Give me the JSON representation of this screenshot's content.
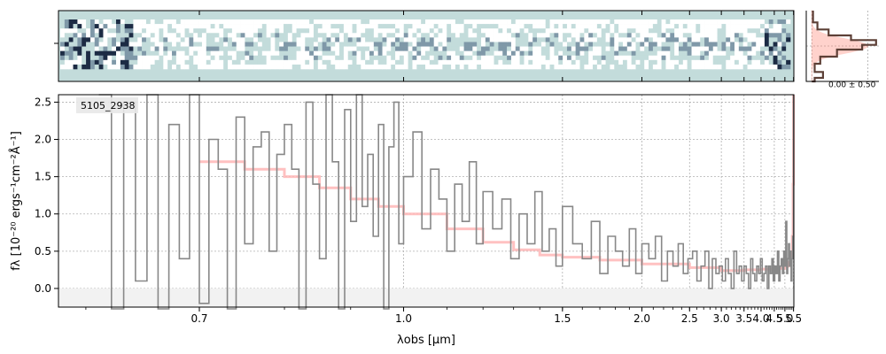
{
  "chart_data": [
    {
      "panel": "2d-spectrum",
      "type": "heatmap",
      "colormap": [
        "#1c2b44",
        "#7f98a8",
        "#c3dcdb",
        "#ffffff"
      ],
      "background": "#c3dcdb",
      "rows": 11,
      "columns": 170
    },
    {
      "panel": "profile",
      "type": "line",
      "annotation": "0.00 ± 0.50",
      "xlim": [
        -0.1,
        1.2
      ],
      "ylim": [
        -3.0,
        3.0
      ],
      "colors": {
        "model": "#ff7f6e",
        "profile": "#5d4037"
      }
    },
    {
      "panel": "1d-spectrum",
      "type": "line",
      "title": "",
      "label": "5105_2938",
      "xlabel": "λobs [μm]",
      "ylabel": "fλ [10⁻²⁰ ergs⁻¹cm⁻²Å⁻¹]",
      "xscale": "reciprocal",
      "xlim": [
        0.58,
        5.52
      ],
      "ylim": [
        -0.25,
        2.6
      ],
      "xticks": [
        0.7,
        1.0,
        1.5,
        2.0,
        2.5,
        3.0,
        3.5,
        4.0,
        4.5,
        5.0,
        5.5
      ],
      "xtick_labels": [
        "0.7",
        "1.0",
        "1.5",
        "2.0",
        "2.5",
        "3.0",
        "3.5",
        "4.0",
        "4.5",
        "5.0",
        "5.5"
      ],
      "yticks": [
        0.0,
        0.5,
        1.0,
        1.5,
        2.0,
        2.5
      ],
      "ytick_labels": [
        "0.0",
        "0.5",
        "1.0",
        "1.5",
        "2.0",
        "2.5"
      ],
      "grid": true,
      "series": [
        {
          "role": "model",
          "color": "#ffb6b6",
          "x": [
            0.7,
            0.75,
            0.8,
            0.85,
            0.9,
            0.95,
            1.0,
            1.1,
            1.2,
            1.3,
            1.4,
            1.5,
            1.7,
            2.0,
            2.5,
            3.0,
            3.5,
            4.0,
            4.5,
            5.0,
            5.2,
            5.35,
            5.42,
            5.47,
            5.5
          ],
          "y": [
            1.7,
            1.6,
            1.5,
            1.35,
            1.2,
            1.1,
            1.0,
            0.8,
            0.62,
            0.52,
            0.45,
            0.42,
            0.38,
            0.33,
            0.28,
            0.24,
            0.25,
            0.26,
            0.27,
            0.3,
            0.35,
            0.45,
            0.7,
            1.4,
            2.6
          ]
        },
        {
          "role": "data",
          "color": "#888888",
          "x": [
            0.61,
            0.62,
            0.63,
            0.64,
            0.65,
            0.66,
            0.67,
            0.68,
            0.69,
            0.7,
            0.71,
            0.72,
            0.73,
            0.74,
            0.75,
            0.76,
            0.77,
            0.78,
            0.79,
            0.8,
            0.81,
            0.82,
            0.83,
            0.84,
            0.85,
            0.86,
            0.87,
            0.88,
            0.89,
            0.9,
            0.91,
            0.92,
            0.93,
            0.94,
            0.95,
            0.96,
            0.97,
            0.98,
            0.99,
            1.0,
            1.02,
            1.04,
            1.06,
            1.08,
            1.1,
            1.12,
            1.14,
            1.16,
            1.18,
            1.2,
            1.23,
            1.26,
            1.29,
            1.32,
            1.35,
            1.38,
            1.41,
            1.44,
            1.47,
            1.5,
            1.55,
            1.6,
            1.65,
            1.7,
            1.75,
            1.8,
            1.85,
            1.9,
            1.95,
            2.0,
            2.06,
            2.12,
            2.18,
            2.24,
            2.3,
            2.36,
            2.42,
            2.48,
            2.54,
            2.6,
            2.66,
            2.72,
            2.78,
            2.84,
            2.9,
            2.96,
            3.02,
            3.08,
            3.14,
            3.2,
            3.26,
            3.32,
            3.38,
            3.44,
            3.5,
            3.56,
            3.62,
            3.68,
            3.74,
            3.8,
            3.86,
            3.92,
            3.98,
            4.04,
            4.1,
            4.16,
            4.22,
            4.28,
            4.34,
            4.4,
            4.46,
            4.52,
            4.58,
            4.64,
            4.7,
            4.76,
            4.82,
            4.88,
            4.94,
            5.0,
            5.05,
            5.1,
            5.15,
            5.2,
            5.25,
            5.3,
            5.35,
            5.4,
            5.45,
            5.5
          ],
          "y": [
            2.6,
            -0.3,
            2.5,
            0.1,
            2.6,
            -0.3,
            2.2,
            0.4,
            2.6,
            -0.2,
            2.0,
            1.6,
            -0.3,
            2.3,
            0.6,
            1.9,
            2.1,
            0.5,
            1.8,
            2.2,
            1.6,
            -0.3,
            2.5,
            1.4,
            0.4,
            2.6,
            1.7,
            -0.3,
            2.4,
            0.9,
            2.6,
            1.1,
            1.8,
            0.7,
            2.2,
            -0.3,
            1.9,
            2.5,
            0.6,
            1.5,
            2.1,
            0.8,
            1.6,
            1.2,
            0.5,
            1.4,
            0.9,
            1.7,
            0.6,
            1.3,
            0.8,
            1.2,
            0.4,
            1.0,
            0.6,
            1.3,
            0.5,
            0.8,
            0.3,
            1.1,
            0.6,
            0.4,
            0.9,
            0.2,
            0.7,
            0.5,
            0.3,
            0.8,
            0.2,
            0.6,
            0.4,
            0.7,
            0.1,
            0.5,
            0.3,
            0.6,
            0.2,
            0.4,
            0.5,
            0.1,
            0.3,
            0.5,
            0.0,
            0.4,
            0.2,
            0.3,
            0.1,
            0.4,
            0.2,
            0.0,
            0.5,
            0.2,
            0.3,
            0.1,
            0.3,
            0.2,
            0.0,
            0.4,
            0.2,
            0.1,
            0.3,
            0.2,
            0.4,
            0.1,
            0.2,
            0.3,
            0.0,
            0.3,
            0.2,
            0.4,
            0.1,
            0.3,
            0.2,
            0.5,
            0.1,
            0.3,
            0.4,
            0.2,
            0.5,
            0.3,
            0.9,
            0.2,
            0.4,
            0.6,
            0.3,
            0.5,
            0.1,
            0.4,
            0.7,
            2.6
          ]
        }
      ]
    }
  ]
}
